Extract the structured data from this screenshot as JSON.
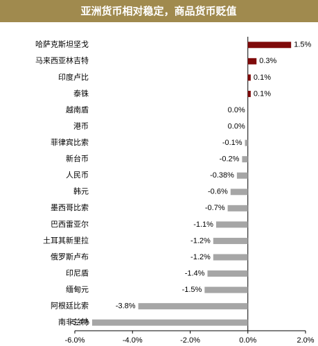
{
  "chart_data": {
    "type": "hbar",
    "title": "亚洲货币相对稳定，商品货币贬值",
    "categories": [
      "哈萨克斯坦坚戈",
      "马来西亚林吉特",
      "印度卢比",
      "泰铢",
      "越南盾",
      "港币",
      "菲律宾比索",
      "新台币",
      "人民币",
      "韩元",
      "墨西哥比索",
      "巴西雷亚尔",
      "土耳其新里拉",
      "俄罗斯卢布",
      "印尼盾",
      "缅甸元",
      "阿根廷比索",
      "南非兰特"
    ],
    "values": [
      1.5,
      0.3,
      0.1,
      0.1,
      0.0,
      0.0,
      -0.1,
      -0.2,
      -0.38,
      -0.6,
      -0.7,
      -1.1,
      -1.2,
      -1.2,
      -1.4,
      -1.5,
      -3.8,
      -5.4
    ],
    "value_labels": [
      "1.5%",
      "0.3%",
      "0.1%",
      "0.1%",
      "0.0%",
      "0.0%",
      "-0.1%",
      "-0.2%",
      "-0.38%",
      "-0.6%",
      "-0.7%",
      "-1.1%",
      "-1.2%",
      "-1.2%",
      "-1.4%",
      "-1.5%",
      "-3.8%",
      "-5.4%"
    ],
    "positive_color": "#7f0a0a",
    "negative_color": "#a6a6a6",
    "xlim": [
      -6,
      2
    ],
    "xticks": [
      {
        "value": -6,
        "label": "-6.0%"
      },
      {
        "value": -4,
        "label": "-4.0%"
      },
      {
        "value": -2,
        "label": "-2.0%"
      },
      {
        "value": 0,
        "label": "0.0%"
      },
      {
        "value": 2,
        "label": "2.0%"
      }
    ]
  }
}
